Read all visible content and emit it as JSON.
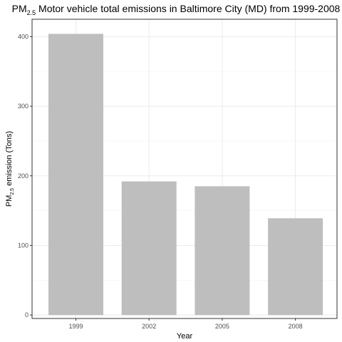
{
  "chart_data": {
    "type": "bar",
    "title": {
      "prefix": "PM",
      "subscript": "2.5",
      "suffix": " Motor vehicle total emissions in Baltimore City (MD) from 1999-2008"
    },
    "xlabel": "Year",
    "ylabel": {
      "prefix": "PM",
      "subscript": "2.5",
      "suffix": " emission (Tons)"
    },
    "categories": [
      "1999",
      "2002",
      "2005",
      "2008"
    ],
    "values": [
      404,
      192,
      185,
      139
    ],
    "ylim": [
      -5,
      425
    ],
    "yticks": [
      0,
      100,
      200,
      300,
      400
    ],
    "grid": true,
    "bar_color": "#bebebe",
    "grid_color": "#ebebeb",
    "border_color": "#333333"
  }
}
